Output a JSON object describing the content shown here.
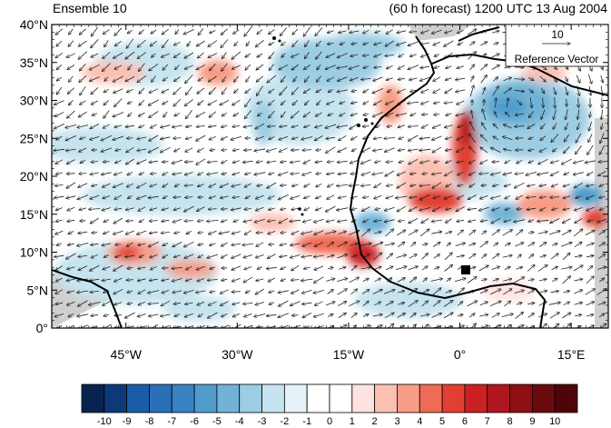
{
  "title_left": "Ensemble 10",
  "title_right": "(60 h forecast) 1200 UTC 13 Aug 2004",
  "map": {
    "lat_labels": [
      "40°N",
      "35°N",
      "30°N",
      "25°N",
      "20°N",
      "15°N",
      "10°N",
      "5°N",
      "0°"
    ],
    "lon_labels": [
      "45°W",
      "30°W",
      "15°W",
      "0°",
      "15°E"
    ],
    "lat_ticks": [
      40,
      35,
      30,
      25,
      20,
      15,
      10,
      5,
      0
    ],
    "lon_ticks": [
      -45,
      -30,
      -15,
      0,
      15
    ],
    "extent": {
      "lon_min": -55,
      "lon_max": 20,
      "lat_min": 0,
      "lat_max": 40
    }
  },
  "reference_vector": {
    "magnitude": "10",
    "label": "Reference Vector"
  },
  "colorbar": {
    "labels": [
      "-10",
      "-9",
      "-8",
      "-7",
      "-6",
      "-5",
      "-4",
      "-3",
      "-2",
      "-1",
      "0",
      "1",
      "2",
      "3",
      "4",
      "5",
      "6",
      "7",
      "8",
      "9",
      "10"
    ],
    "colors": [
      "#08234f",
      "#0c3a79",
      "#1b5ca8",
      "#2a6fb8",
      "#3a83c3",
      "#4f9ccc",
      "#71b3d7",
      "#9dcde3",
      "#c6e4ef",
      "#e5f3f9",
      "#ffffff",
      "#ffffff",
      "#fde2df",
      "#fbc0b2",
      "#f79c86",
      "#f06b55",
      "#e13f33",
      "#cc2025",
      "#b0161e",
      "#8e0f14",
      "#6b0a0e",
      "#4d050a"
    ]
  }
}
